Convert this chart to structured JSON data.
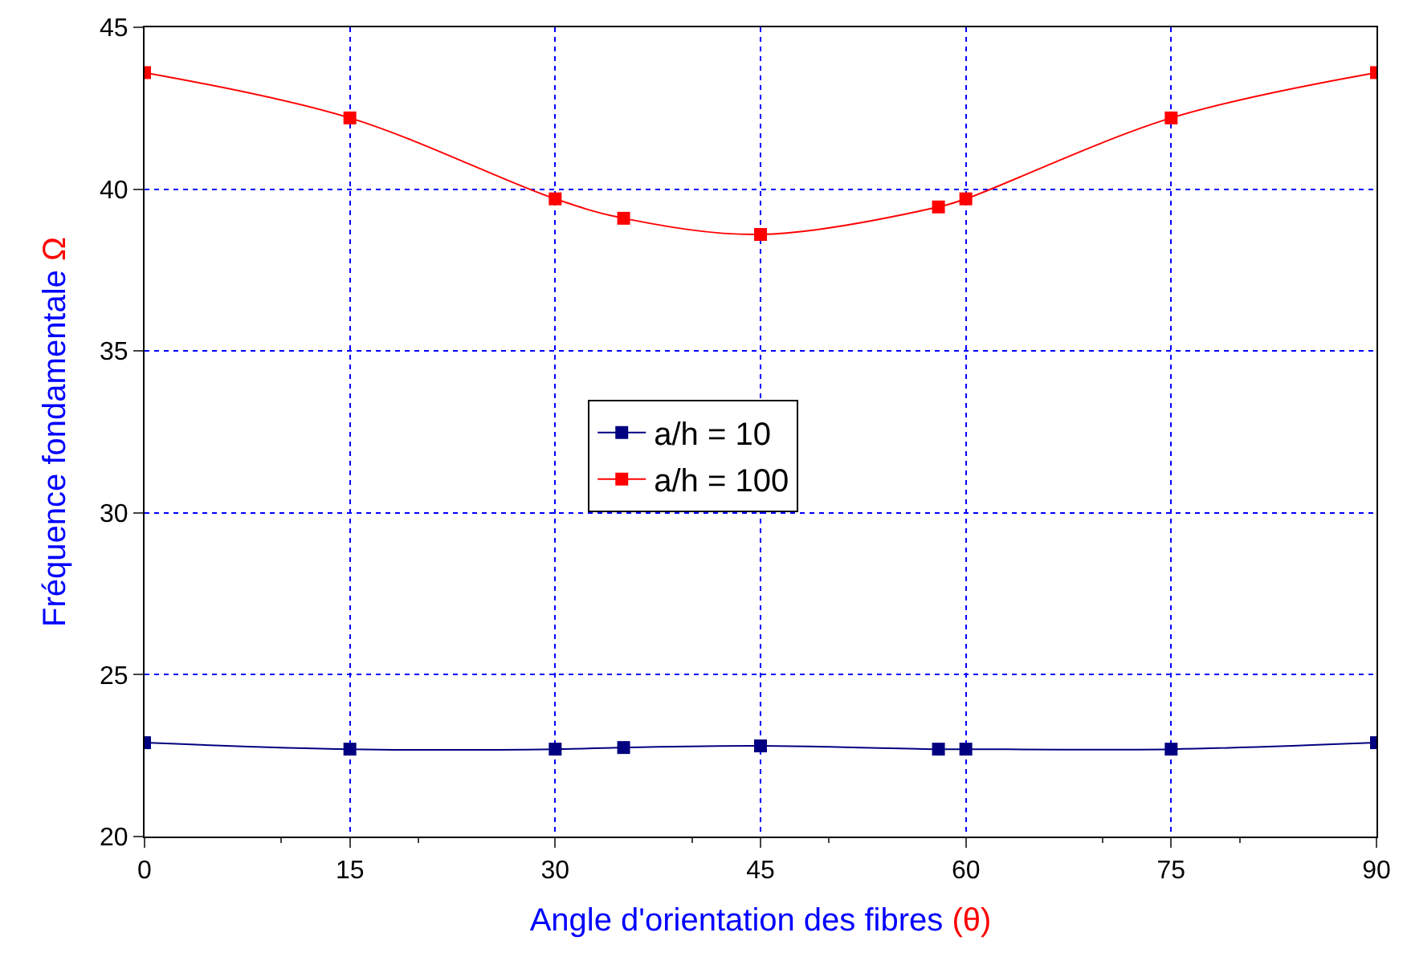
{
  "chart_data": {
    "type": "line",
    "xlabel": "Angle d'orientation des fibres (θ)",
    "ylabel": "Fréquence fondamentale Ω",
    "x": [
      0,
      15,
      30,
      35,
      45,
      58,
      60,
      75,
      90
    ],
    "series": [
      {
        "name": "a/h = 10",
        "color": "#000080",
        "values": [
          22.9,
          22.7,
          22.7,
          22.75,
          22.8,
          22.7,
          22.7,
          22.7,
          22.9
        ]
      },
      {
        "name": "a/h = 100",
        "color": "#ff0000",
        "values": [
          43.6,
          42.2,
          39.7,
          39.1,
          38.6,
          39.45,
          39.7,
          42.2,
          43.6
        ]
      }
    ],
    "xlim": [
      0,
      90
    ],
    "xticks": [
      0,
      15,
      30,
      45,
      60,
      75,
      90
    ],
    "ylim": [
      20,
      45
    ],
    "yticks": [
      20,
      25,
      30,
      35,
      40,
      45
    ],
    "grid": true,
    "legend": "center",
    "marker": "square",
    "line_style": "solid"
  }
}
